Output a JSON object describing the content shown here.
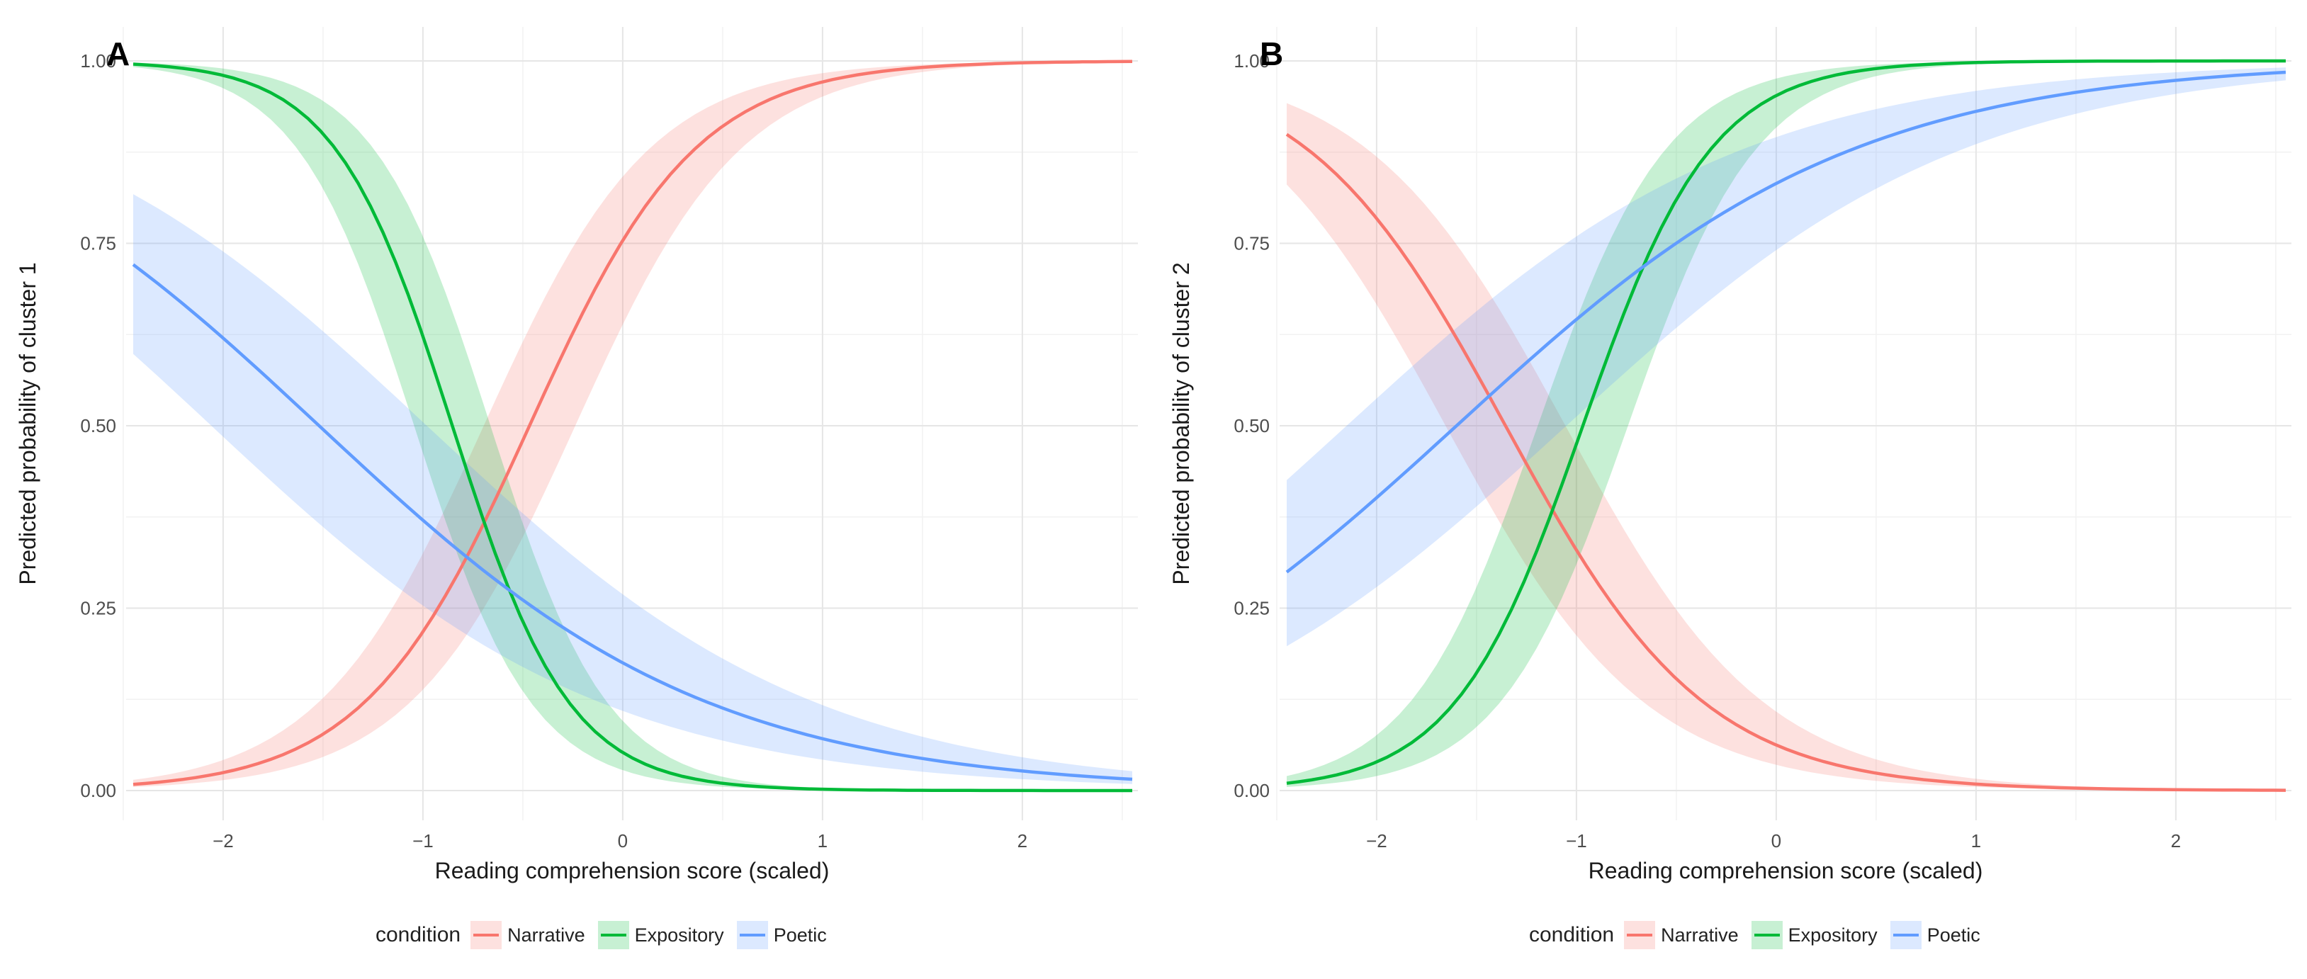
{
  "chart_data": [
    {
      "type": "line",
      "panel_label": "A",
      "xlabel": "Reading comprehension score (scaled)",
      "ylabel": "Predicted probability of cluster 1",
      "xlim": [
        -2.45,
        2.55
      ],
      "ylim": [
        0,
        1
      ],
      "x_ticks": [
        "−2",
        "−1",
        "0",
        "1",
        "2"
      ],
      "y_ticks": [
        "0.00",
        "0.25",
        "0.50",
        "0.75",
        "1.00"
      ],
      "x_tick_values": [
        -2,
        -1,
        0,
        1,
        2
      ],
      "y_tick_values": [
        0,
        0.25,
        0.5,
        0.75,
        1
      ],
      "grid": true,
      "legend": {
        "title": "condition",
        "position": "bottom",
        "entries": [
          "Narrative",
          "Expository",
          "Poetic"
        ]
      },
      "series": [
        {
          "name": "Narrative",
          "color": "#F8766D",
          "intercept": 1.12,
          "slope": 2.4,
          "ci_width": 0.55
        },
        {
          "name": "Expository",
          "color": "#00BA38",
          "intercept": -2.9,
          "slope": -3.4,
          "ci_width": 0.65
        },
        {
          "name": "Poetic",
          "color": "#619CFF",
          "intercept": -1.55,
          "slope": -1.02,
          "ci_width": 0.55
        }
      ]
    },
    {
      "type": "line",
      "panel_label": "B",
      "xlabel": "Reading comprehension score (scaled)",
      "ylabel": "Predicted probability of cluster 2",
      "xlim": [
        -2.45,
        2.55
      ],
      "ylim": [
        0,
        1
      ],
      "x_ticks": [
        "−2",
        "−1",
        "0",
        "1",
        "2"
      ],
      "y_ticks": [
        "0.00",
        "0.25",
        "0.50",
        "0.75",
        "1.00"
      ],
      "x_tick_values": [
        -2,
        -1,
        0,
        1,
        2
      ],
      "y_tick_values": [
        0,
        0.25,
        0.5,
        0.75,
        1
      ],
      "grid": true,
      "legend": {
        "title": "condition",
        "position": "bottom",
        "entries": [
          "Narrative",
          "Expository",
          "Poetic"
        ]
      },
      "series": [
        {
          "name": "Narrative",
          "color": "#F8766D",
          "intercept": -2.71,
          "slope": -2.0,
          "ci_width": 0.6
        },
        {
          "name": "Expository",
          "color": "#00BA38",
          "intercept": 3.0,
          "slope": 3.1,
          "ci_width": 0.7
        },
        {
          "name": "Poetic",
          "color": "#619CFF",
          "intercept": 1.6,
          "slope": 1.0,
          "ci_width": 0.55
        }
      ]
    }
  ]
}
